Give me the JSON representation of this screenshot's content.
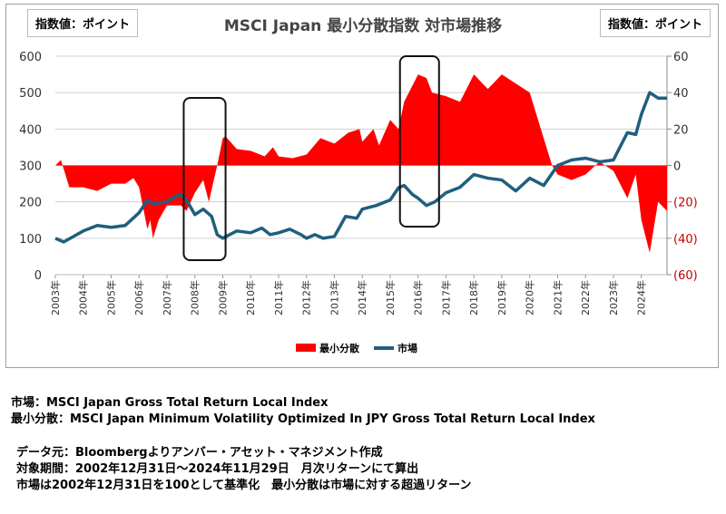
{
  "chart_data": {
    "type": "line+area",
    "title": "MSCI Japan 最小分散指数  対市場推移",
    "left_unit_label": "指数値：ポイント",
    "right_unit_label": "指数値：ポイント",
    "left_axis": {
      "ylim": [
        0,
        600
      ],
      "ticks": [
        "600",
        "500",
        "400",
        "300",
        "200",
        "100",
        "0"
      ],
      "tick_values": [
        600,
        500,
        400,
        300,
        200,
        100,
        0
      ]
    },
    "right_axis": {
      "ylim": [
        -60,
        60
      ],
      "ticks": [
        "60",
        "40",
        "20",
        "0",
        "(20)",
        "(40)",
        "(60)"
      ],
      "tick_values": [
        60,
        40,
        20,
        0,
        -20,
        -40,
        -60
      ],
      "negative_color": "#c00000"
    },
    "x_ticks": [
      "2003年",
      "2004年",
      "2005年",
      "2006年",
      "2007年",
      "2008年",
      "2009年",
      "2010年",
      "2011年",
      "2012年",
      "2013年",
      "2014年",
      "2015年",
      "2016年",
      "2017年",
      "2018年",
      "2019年",
      "2020年",
      "2021年",
      "2022年",
      "2023年",
      "2024年"
    ],
    "xlim": [
      2003,
      2024.92
    ],
    "grid": true,
    "legend_placement": "bottom",
    "highlight_ranges": [
      [
        2007.6,
        2009.1
      ],
      [
        2015.35,
        2016.75
      ]
    ],
    "series": [
      {
        "name": "最小分散",
        "axis": "right",
        "style": "area",
        "color": "#ff0000",
        "x": [
          2003,
          2003.2,
          2003.5,
          2004,
          2004.5,
          2005,
          2005.5,
          2005.8,
          2006,
          2006.3,
          2006.4,
          2006.5,
          2006.7,
          2007,
          2007.5,
          2007.7,
          2008,
          2008.3,
          2008.5,
          2008.8,
          2009,
          2009.1,
          2009.5,
          2010,
          2010.5,
          2010.8,
          2011,
          2011.5,
          2012,
          2012.5,
          2013,
          2013.5,
          2013.9,
          2014,
          2014.4,
          2014.6,
          2015,
          2015.3,
          2015.5,
          2016,
          2016.3,
          2016.5,
          2017,
          2017.5,
          2018,
          2018.5,
          2019,
          2019.5,
          2020,
          2020.4,
          2020.8,
          2021,
          2021.5,
          2022,
          2022.5,
          2023,
          2023.5,
          2023.8,
          2024,
          2024.3,
          2024.6,
          2024.92
        ],
        "values": [
          0,
          3,
          -12,
          -12,
          -14,
          -10,
          -10,
          -7,
          -12,
          -35,
          -30,
          -40,
          -30,
          -22,
          -22,
          -25,
          -15,
          -8,
          -20,
          0,
          15,
          16,
          9,
          8,
          5,
          10,
          5,
          4,
          6,
          15,
          12,
          18,
          20,
          13,
          20,
          11,
          25,
          20,
          35,
          50,
          48,
          40,
          38,
          35,
          50,
          42,
          50,
          45,
          40,
          20,
          0,
          -5,
          -8,
          -5,
          2,
          -3,
          -18,
          -5,
          -30,
          -48,
          -20,
          -25
        ]
      },
      {
        "name": "市場",
        "axis": "left",
        "style": "line",
        "color": "#1f5f7f",
        "x": [
          2003,
          2003.3,
          2004,
          2004.5,
          2005,
          2005.5,
          2006,
          2006.3,
          2006.5,
          2007,
          2007.3,
          2007.5,
          2007.7,
          2008,
          2008.3,
          2008.6,
          2008.8,
          2009,
          2009.5,
          2010,
          2010.4,
          2010.7,
          2011,
          2011.4,
          2011.8,
          2012,
          2012.3,
          2012.6,
          2013,
          2013.4,
          2013.8,
          2014,
          2014.5,
          2015,
          2015.3,
          2015.5,
          2015.8,
          2016,
          2016.3,
          2016.6,
          2017,
          2017.5,
          2018,
          2018.5,
          2019,
          2019.5,
          2020,
          2020.5,
          2021,
          2021.5,
          2022,
          2022.5,
          2023,
          2023.5,
          2023.8,
          2024,
          2024.3,
          2024.6,
          2024.92
        ],
        "values": [
          100,
          90,
          120,
          135,
          130,
          135,
          170,
          205,
          195,
          200,
          215,
          220,
          205,
          165,
          180,
          160,
          110,
          100,
          120,
          115,
          128,
          110,
          115,
          125,
          110,
          100,
          110,
          100,
          105,
          160,
          155,
          180,
          190,
          205,
          239,
          245,
          220,
          210,
          190,
          200,
          225,
          240,
          275,
          265,
          260,
          230,
          265,
          245,
          300,
          315,
          320,
          310,
          315,
          390,
          385,
          440,
          500,
          485,
          485
        ]
      }
    ]
  },
  "notes": {
    "line1": "市場：MSCI Japan Gross Total Return Local Index",
    "line2": "最小分散：MSCI Japan Minimum Volatility Optimized In JPY Gross Total Return Local Index",
    "line3": "データ元：Bloombergよりアンバー・アセット・マネジメント作成",
    "line4": "対象期間：2002年12月31日～2024年11月29日　月次リターンにて算出",
    "line5": "市場は2002年12月31日を100として基準化　最小分散は市場に対する超過リターン"
  }
}
